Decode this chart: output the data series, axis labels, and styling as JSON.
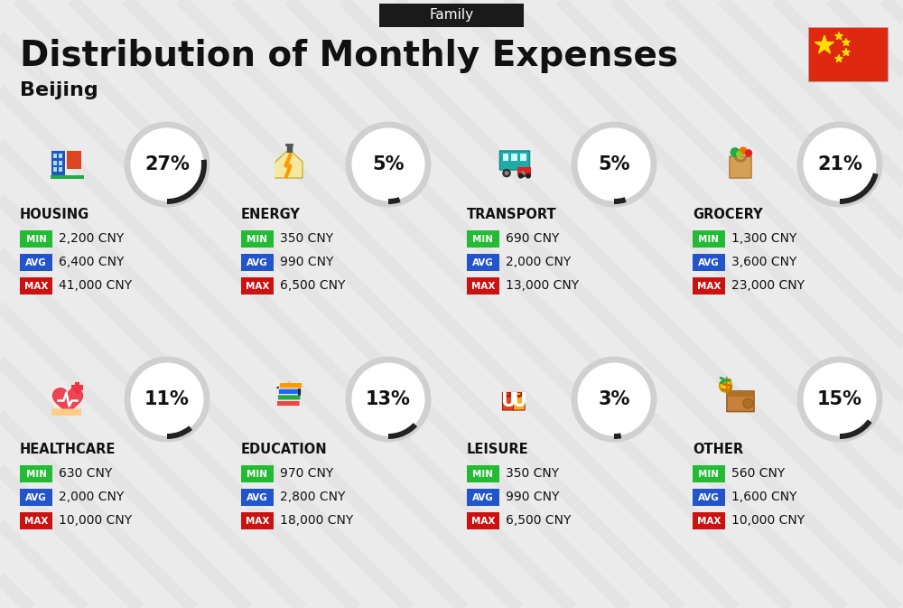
{
  "title": "Distribution of Monthly Expenses",
  "subtitle": "Beijing",
  "tag": "Family",
  "bg_color": "#ebebeb",
  "header_bg": "#1a1a1a",
  "header_text_color": "#ffffff",
  "title_color": "#111111",
  "subtitle_color": "#111111",
  "categories": [
    {
      "name": "HOUSING",
      "pct": 27,
      "min": "2,200 CNY",
      "avg": "6,400 CNY",
      "max": "41,000 CNY",
      "row": 0,
      "col": 0,
      "icon_type": "housing"
    },
    {
      "name": "ENERGY",
      "pct": 5,
      "min": "350 CNY",
      "avg": "990 CNY",
      "max": "6,500 CNY",
      "row": 0,
      "col": 1,
      "icon_type": "energy"
    },
    {
      "name": "TRANSPORT",
      "pct": 5,
      "min": "690 CNY",
      "avg": "2,000 CNY",
      "max": "13,000 CNY",
      "row": 0,
      "col": 2,
      "icon_type": "transport"
    },
    {
      "name": "GROCERY",
      "pct": 21,
      "min": "1,300 CNY",
      "avg": "3,600 CNY",
      "max": "23,000 CNY",
      "row": 0,
      "col": 3,
      "icon_type": "grocery"
    },
    {
      "name": "HEALTHCARE",
      "pct": 11,
      "min": "630 CNY",
      "avg": "2,000 CNY",
      "max": "10,000 CNY",
      "row": 1,
      "col": 0,
      "icon_type": "healthcare"
    },
    {
      "name": "EDUCATION",
      "pct": 13,
      "min": "970 CNY",
      "avg": "2,800 CNY",
      "max": "18,000 CNY",
      "row": 1,
      "col": 1,
      "icon_type": "education"
    },
    {
      "name": "LEISURE",
      "pct": 3,
      "min": "350 CNY",
      "avg": "990 CNY",
      "max": "6,500 CNY",
      "row": 1,
      "col": 2,
      "icon_type": "leisure"
    },
    {
      "name": "OTHER",
      "pct": 15,
      "min": "560 CNY",
      "avg": "1,600 CNY",
      "max": "10,000 CNY",
      "row": 1,
      "col": 3,
      "icon_type": "other"
    }
  ],
  "min_color": "#22bb33",
  "avg_color": "#2255cc",
  "max_color": "#cc1111",
  "ring_bg_color": "#d0d0d0",
  "ring_arc_color": "#222222",
  "ring_fill": "#ffffff",
  "pct_text_color": "#111111",
  "category_text_color": "#111111",
  "value_text_color": "#111111",
  "stripe_color": "#e2e2e2",
  "flag_red": "#DE2910",
  "flag_yellow": "#FFDE00"
}
